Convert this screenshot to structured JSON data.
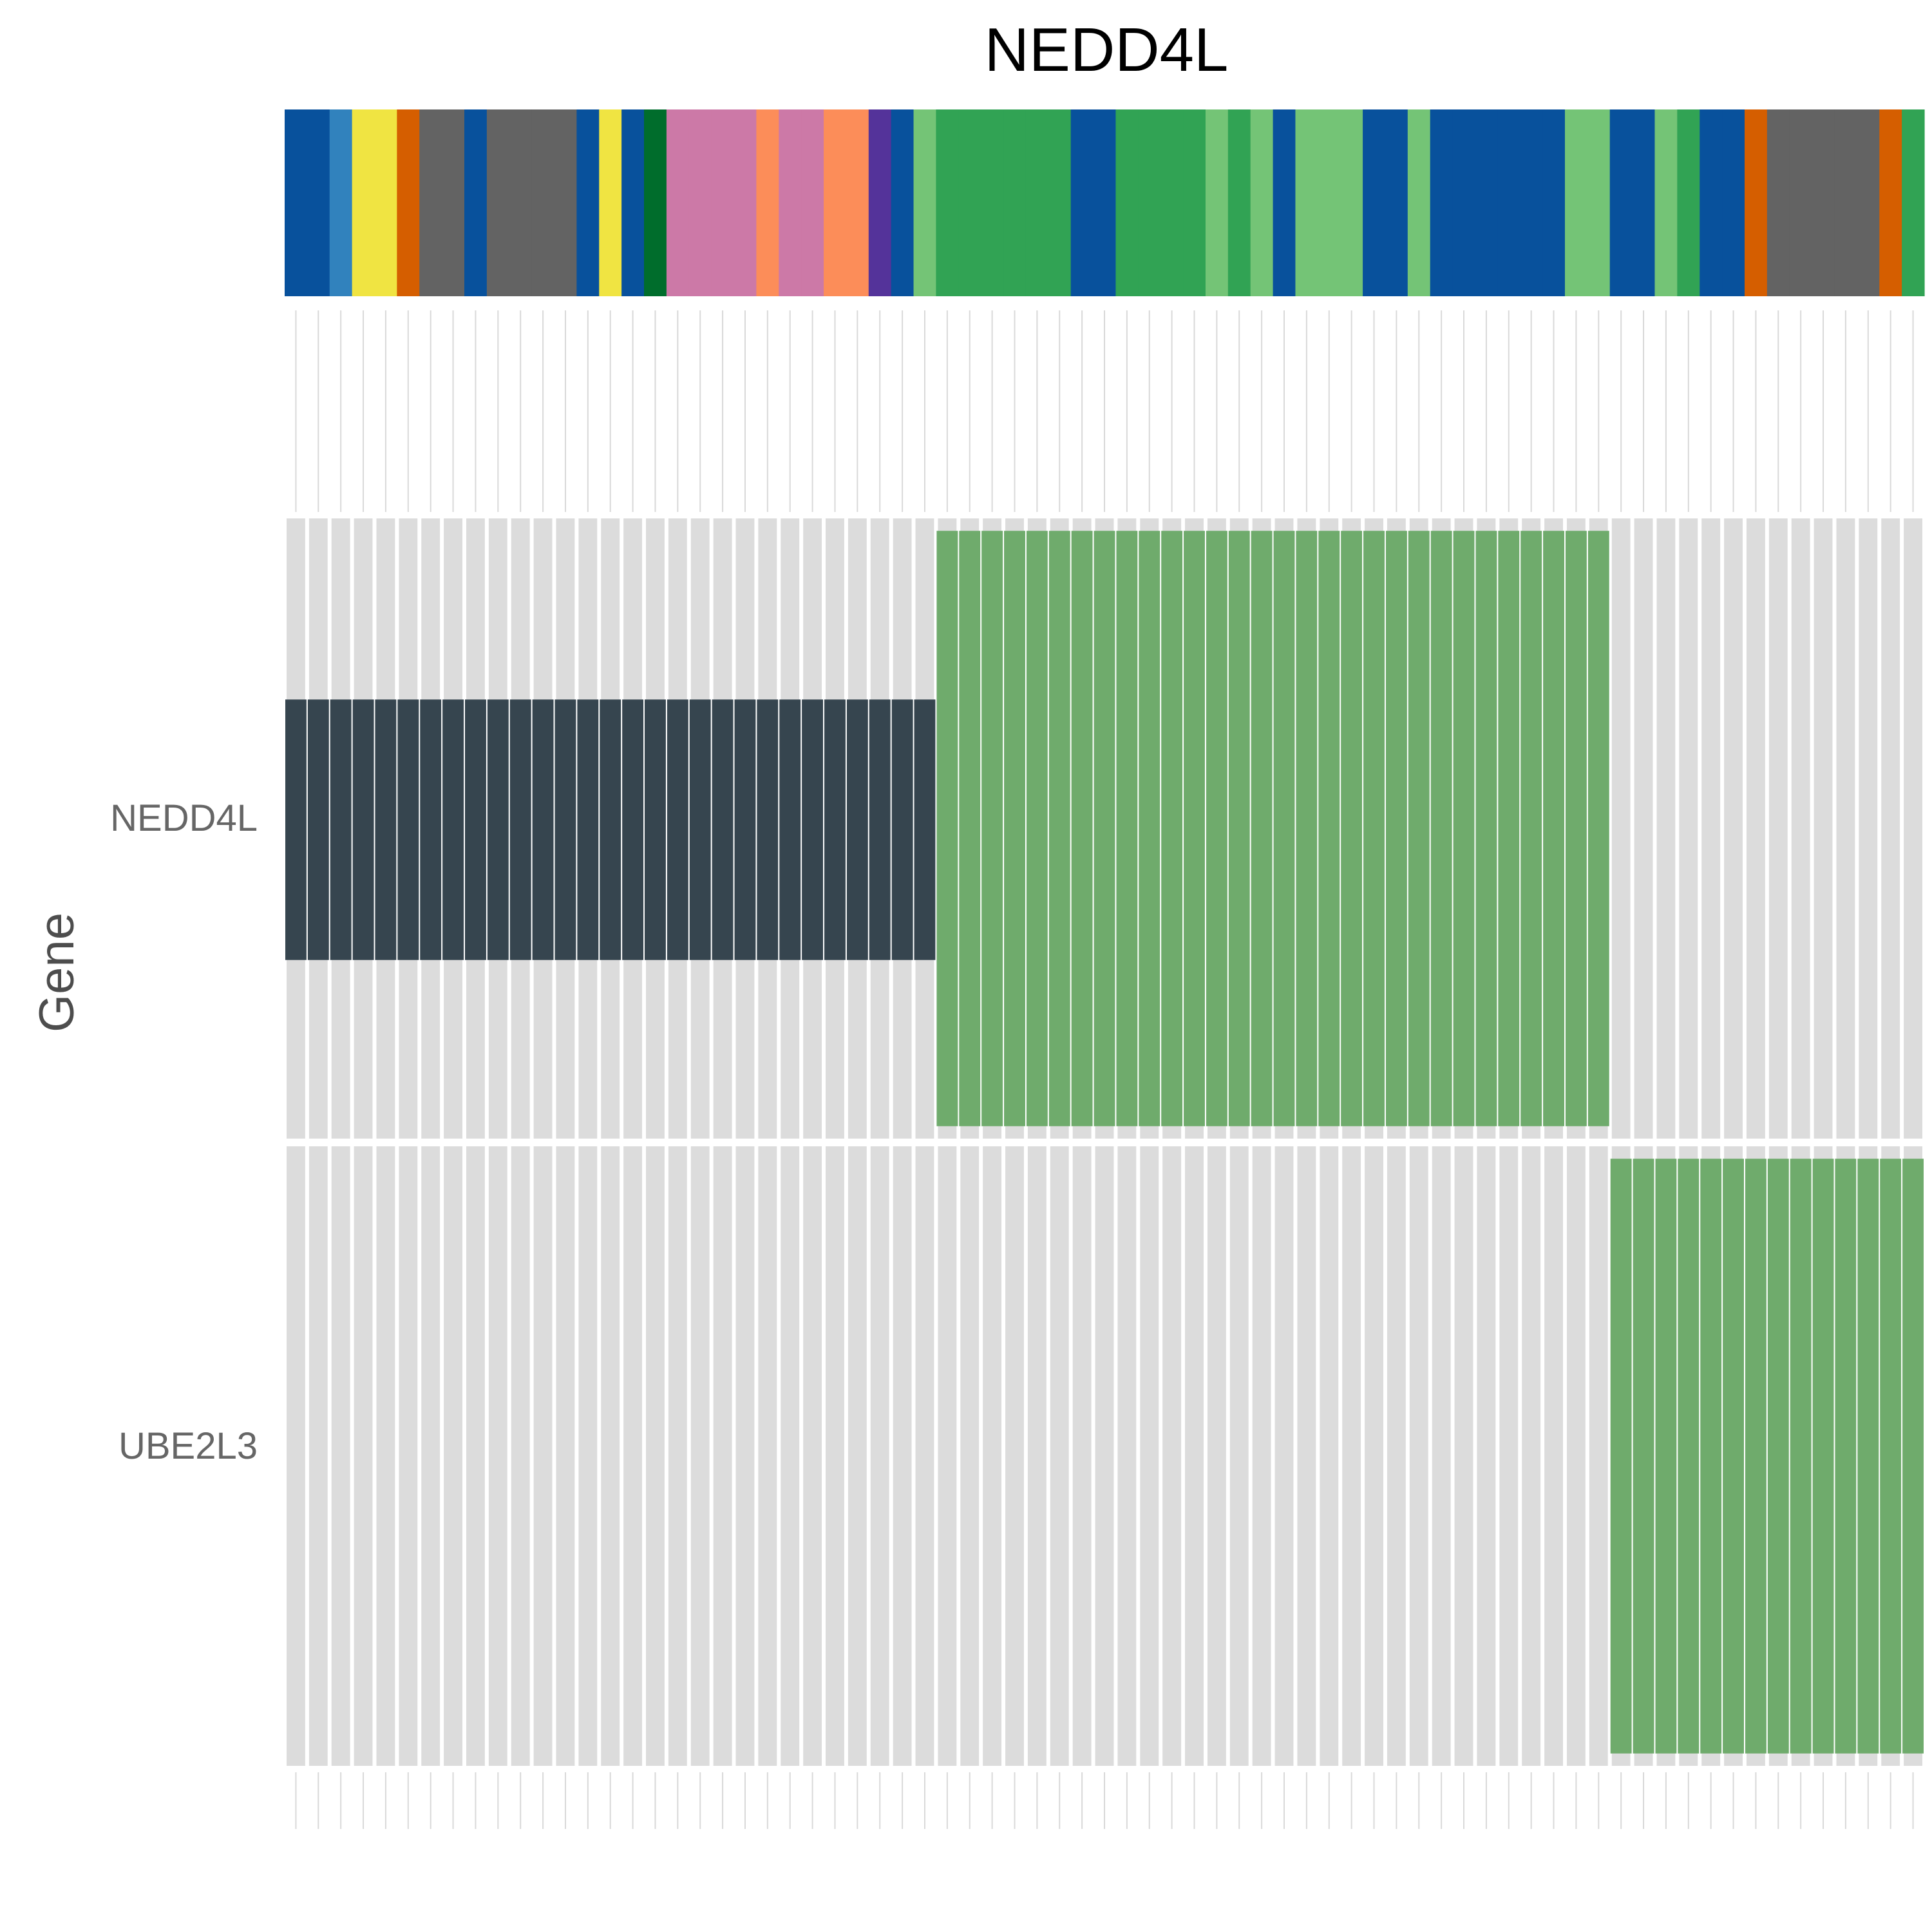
{
  "chart_data": {
    "type": "heatmap",
    "title": "NEDD4L",
    "ylabel": "Gene",
    "genes": [
      "NEDD4L",
      "UBE2L3"
    ],
    "n_samples": 73,
    "annotation_colors": [
      "#08519c",
      "#08519c",
      "#3182bd",
      "#f0e442",
      "#f0e442",
      "#d55e00",
      "#636363",
      "#636363",
      "#08519c",
      "#636363",
      "#636363",
      "#636363",
      "#636363",
      "#08519c",
      "#f0e442",
      "#08519c",
      "#006d2c",
      "#cc79a7",
      "#cc79a7",
      "#cc79a7",
      "#cc79a7",
      "#fc8d59",
      "#cc79a7",
      "#cc79a7",
      "#fc8d59",
      "#fc8d59",
      "#54339a",
      "#08519c",
      "#74c476",
      "#31a354",
      "#31a354",
      "#31a354",
      "#31a354",
      "#31a354",
      "#31a354",
      "#08519c",
      "#08519c",
      "#31a354",
      "#31a354",
      "#31a354",
      "#31a354",
      "#74c476",
      "#31a354",
      "#74c476",
      "#08519c",
      "#74c476",
      "#74c476",
      "#74c476",
      "#08519c",
      "#08519c",
      "#74c476",
      "#08519c",
      "#08519c",
      "#08519c",
      "#08519c",
      "#08519c",
      "#08519c",
      "#74c476",
      "#74c476",
      "#08519c",
      "#08519c",
      "#74c476",
      "#31a354",
      "#08519c",
      "#08519c",
      "#d55e00",
      "#636363",
      "#636363",
      "#636363",
      "#636363",
      "#636363",
      "#d55e00",
      "#31a354"
    ],
    "alterations": {
      "NEDD4L": [
        {
          "from": 0,
          "to": 28,
          "type": "full",
          "color": "#36454f"
        },
        {
          "from": 29,
          "to": 58,
          "type": "partial",
          "color": "#6fab6c"
        }
      ],
      "UBE2L3": [
        {
          "from": 59,
          "to": 72,
          "type": "partial",
          "color": "#6fab6c"
        }
      ]
    },
    "background_color": "#dcdcdc"
  }
}
